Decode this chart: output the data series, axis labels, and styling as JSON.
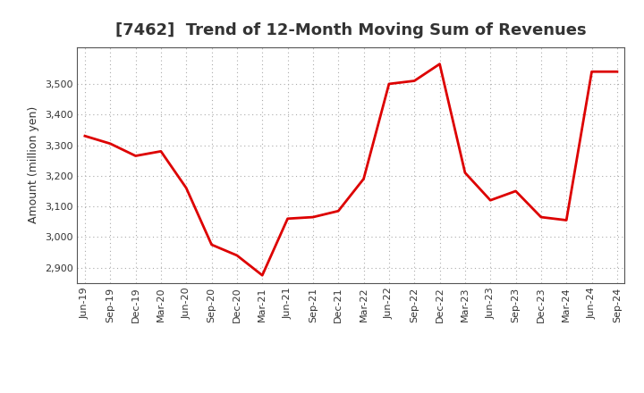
{
  "title": "[7462]  Trend of 12-Month Moving Sum of Revenues",
  "ylabel": "Amount (million yen)",
  "x_labels": [
    "Jun-19",
    "Sep-19",
    "Dec-19",
    "Mar-20",
    "Jun-20",
    "Sep-20",
    "Dec-20",
    "Mar-21",
    "Jun-21",
    "Sep-21",
    "Dec-21",
    "Mar-22",
    "Jun-22",
    "Sep-22",
    "Dec-22",
    "Mar-23",
    "Jun-23",
    "Sep-23",
    "Dec-23",
    "Mar-24",
    "Jun-24",
    "Sep-24"
  ],
  "y_values": [
    3330,
    3305,
    3265,
    3280,
    3160,
    2975,
    2940,
    2875,
    3060,
    3065,
    3085,
    3190,
    3500,
    3510,
    3565,
    3210,
    3120,
    3150,
    3065,
    3055,
    3540,
    3540
  ],
  "ylim": [
    2850,
    3620
  ],
  "yticks": [
    2900,
    3000,
    3100,
    3200,
    3300,
    3400,
    3500
  ],
  "line_color": "#dd0000",
  "line_width": 2.0,
  "bg_color": "#ffffff",
  "plot_bg_color": "#ffffff",
  "grid_color": "#aaaaaa",
  "title_fontsize": 13,
  "label_fontsize": 9,
  "tick_fontsize": 8,
  "title_color": "#333333",
  "tick_color": "#333333"
}
